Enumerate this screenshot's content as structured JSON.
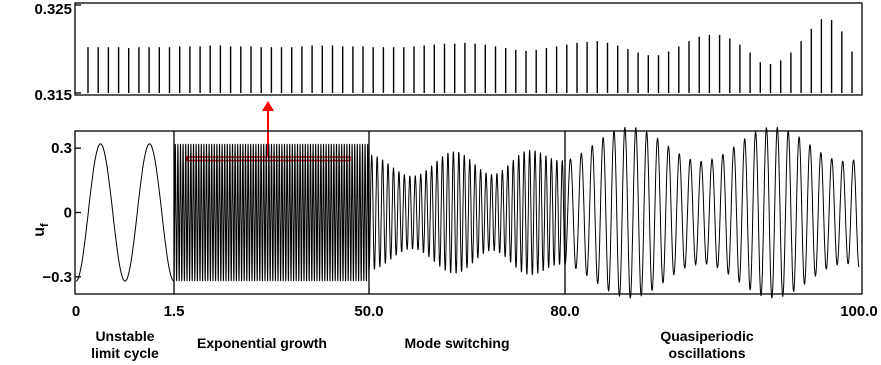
{
  "chart_data": [
    {
      "type": "line",
      "panel": "inset",
      "title": "",
      "xlabel": "",
      "ylabel": "",
      "ylim": [
        0.315,
        0.325
      ],
      "yticks": [
        "0.315",
        "0.325"
      ],
      "grid": false,
      "description_series": "peak amplitude of u_f per cycle",
      "peaks": [
        0.3202,
        0.3202,
        0.3202,
        0.3202,
        0.3201,
        0.3202,
        0.3202,
        0.3202,
        0.3202,
        0.3203,
        0.3203,
        0.3203,
        0.3204,
        0.3204,
        0.3203,
        0.3203,
        0.3203,
        0.3202,
        0.3202,
        0.3202,
        0.3202,
        0.3203,
        0.3204,
        0.3204,
        0.3204,
        0.3203,
        0.3203,
        0.3203,
        0.3202,
        0.3202,
        0.3202,
        0.3202,
        0.3203,
        0.3204,
        0.3205,
        0.3206,
        0.3206,
        0.3207,
        0.3206,
        0.3205,
        0.3203,
        0.3201,
        0.3199,
        0.3198,
        0.3199,
        0.3201,
        0.3203,
        0.3205,
        0.3207,
        0.3208,
        0.3209,
        0.3207,
        0.3204,
        0.32,
        0.3196,
        0.3193,
        0.3193,
        0.3197,
        0.3203,
        0.3209,
        0.3214,
        0.3216,
        0.3216,
        0.3212,
        0.3205,
        0.3196,
        0.3185,
        0.3183,
        0.3187,
        0.3196,
        0.3209,
        0.3223,
        0.3234,
        0.3233,
        0.322,
        0.3197
      ]
    },
    {
      "type": "line",
      "panel": "main",
      "title": "",
      "xlabel": "",
      "ylabel": "u_f",
      "ylabel_main": "u",
      "ylabel_sub": "f",
      "ylim": [
        -0.38,
        0.38
      ],
      "yticks": [
        "−0.3",
        "0",
        "0.3"
      ],
      "yvalues": [
        -0.3,
        0,
        0.3
      ],
      "xticks": [
        "0",
        "1.5",
        "50.0",
        "80.0",
        "100.0"
      ],
      "grid": false,
      "phases": [
        {
          "start": 0,
          "end": 1.5,
          "label_line1": "Unstable",
          "label_line2": "limit cycle"
        },
        {
          "start": 1.5,
          "end": 50.0,
          "label_line1": "Exponential growth",
          "label_line2": ""
        },
        {
          "start": 50.0,
          "end": 80.0,
          "label_line1": "Mode switching",
          "label_line2": ""
        },
        {
          "start": 80.0,
          "end": 100.0,
          "label_line1": "Quasiperiodic",
          "label_line2": "oscillations"
        }
      ],
      "segment1": {
        "amplitude": 0.32,
        "cycles": 2
      },
      "segment2": {
        "amplitude": 0.32,
        "cycles": 75
      },
      "segment3": {
        "cycles": 36,
        "amplitude_min": 0.17,
        "amplitude_max": 0.33
      },
      "segment4": {
        "cycles": 27,
        "amplitude_min": 0.24,
        "amplitude_max": 0.4
      },
      "highlight": {
        "color": "#ff0000",
        "level": 0.32
      }
    }
  ]
}
